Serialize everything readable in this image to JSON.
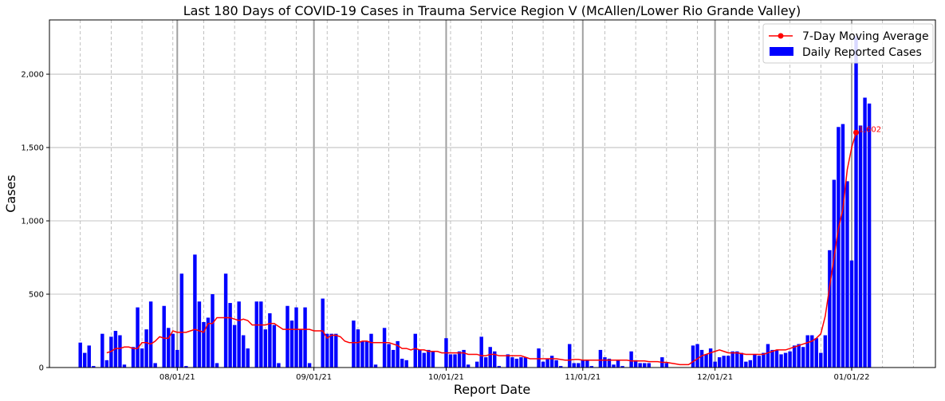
{
  "chart_data": {
    "type": "bar",
    "title": "Last 180 Days of COVID-19 Cases in Trauma Service Region V (McAllen/Lower Rio Grande Valley)",
    "xlabel": "Report Date",
    "ylabel": "Cases",
    "x_start": "2021-07-10",
    "xlim": [
      "2021-07-03",
      "2022-01-20"
    ],
    "ylim": [
      0,
      2370
    ],
    "x_ticks": [
      {
        "date": "2021-08-01",
        "label": "08/01/21"
      },
      {
        "date": "2021-09-01",
        "label": "09/01/21"
      },
      {
        "date": "2021-10-01",
        "label": "10/01/21"
      },
      {
        "date": "2021-11-01",
        "label": "11/01/21"
      },
      {
        "date": "2021-12-01",
        "label": "12/01/21"
      },
      {
        "date": "2022-01-01",
        "label": "01/01/22"
      }
    ],
    "y_ticks": [
      {
        "value": 0,
        "label": "0"
      },
      {
        "value": 500,
        "label": "500"
      },
      {
        "value": 1000,
        "label": "1,000"
      },
      {
        "value": 1500,
        "label": "1,500"
      },
      {
        "value": 2000,
        "label": "2,000"
      }
    ],
    "grid": true,
    "legend_position": "top-right",
    "series": [
      {
        "name": "Daily Reported Cases",
        "type": "bar",
        "color": "#0000ff",
        "values": [
          170,
          100,
          150,
          10,
          0,
          230,
          50,
          210,
          250,
          220,
          20,
          0,
          140,
          410,
          130,
          260,
          450,
          30,
          0,
          420,
          270,
          230,
          120,
          640,
          10,
          0,
          770,
          450,
          310,
          340,
          500,
          30,
          0,
          640,
          440,
          290,
          450,
          220,
          130,
          0,
          450,
          450,
          260,
          370,
          290,
          30,
          0,
          420,
          320,
          410,
          260,
          410,
          30,
          0,
          0,
          470,
          230,
          230,
          230,
          0,
          0,
          0,
          320,
          260,
          180,
          180,
          230,
          20,
          0,
          270,
          160,
          120,
          180,
          60,
          50,
          0,
          230,
          120,
          100,
          120,
          110,
          0,
          0,
          200,
          90,
          90,
          110,
          120,
          20,
          0,
          40,
          210,
          70,
          140,
          110,
          10,
          0,
          90,
          70,
          60,
          70,
          70,
          0,
          0,
          130,
          40,
          60,
          80,
          50,
          10,
          0,
          160,
          30,
          30,
          50,
          50,
          10,
          0,
          120,
          70,
          60,
          20,
          50,
          10,
          0,
          110,
          50,
          30,
          30,
          30,
          0,
          0,
          70,
          30,
          0,
          0,
          0,
          0,
          0,
          150,
          160,
          120,
          90,
          130,
          40,
          70,
          80,
          80,
          110,
          110,
          100,
          40,
          50,
          90,
          80,
          100,
          160,
          120,
          120,
          90,
          100,
          110,
          150,
          160,
          140,
          220,
          220,
          200,
          100,
          220,
          800,
          1280,
          1640,
          1660,
          1270,
          730,
          2260,
          1650,
          1840,
          1800
        ],
        "point_color": "#ff0000"
      },
      {
        "name": "7-Day Moving Average",
        "type": "line",
        "color": "#ff0000",
        "start_index": 6,
        "values": [
          100,
          110,
          130,
          130,
          140,
          140,
          130,
          130,
          170,
          170,
          160,
          180,
          210,
          200,
          200,
          250,
          240,
          240,
          240,
          250,
          260,
          250,
          240,
          300,
          300,
          340,
          340,
          340,
          340,
          330,
          320,
          330,
          320,
          290,
          290,
          290,
          290,
          300,
          300,
          280,
          260,
          260,
          260,
          260,
          260,
          260,
          260,
          250,
          250,
          250,
          200,
          220,
          220,
          210,
          180,
          170,
          170,
          170,
          180,
          180,
          170,
          170,
          170,
          170,
          170,
          160,
          150,
          130,
          130,
          120,
          130,
          120,
          120,
          110,
          110,
          110,
          100,
          100,
          100,
          100,
          100,
          100,
          90,
          90,
          90,
          80,
          80,
          90,
          90,
          80,
          80,
          80,
          80,
          80,
          80,
          70,
          60,
          60,
          60,
          60,
          60,
          60,
          60,
          55,
          50,
          50,
          55,
          55,
          50,
          50,
          50,
          50,
          50,
          50,
          50,
          50,
          50,
          50,
          50,
          45,
          45,
          45,
          45,
          40,
          40,
          40,
          35,
          35,
          30,
          25,
          20,
          20,
          20,
          40,
          60,
          80,
          90,
          100,
          110,
          120,
          110,
          100,
          100,
          100,
          95,
          90,
          90,
          90,
          90,
          90,
          100,
          110,
          120,
          120,
          120,
          130,
          140,
          150,
          160,
          170,
          180,
          200,
          230,
          350,
          550,
          750,
          950,
          1080,
          1350,
          1500,
          1602
        ]
      }
    ],
    "annotations": [
      {
        "text": "1,602"
      }
    ]
  }
}
